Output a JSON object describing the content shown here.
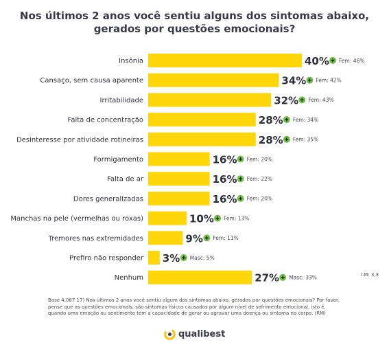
{
  "title_line1": "Nos últimos 2 anos você sentiu alguns dos sintomas abaixo,",
  "title_line2": "gerados por questões emocionais?",
  "chart_data": {
    "type": "bar",
    "orientation": "horizontal",
    "categories": [
      "Insônia",
      "Cansaço, sem causa aparente",
      "Irritabilidade",
      "Falta de concentração",
      "Desinteresse por atividade rotineiras",
      "Formigamento",
      "Falta de ar",
      "Dores generalizadas",
      "Manchas na pele (vermelhas ou roxas)",
      "Tremores nas extremidades",
      "Prefiro não responder",
      "Nenhum"
    ],
    "values": [
      40,
      34,
      32,
      28,
      28,
      16,
      16,
      16,
      10,
      9,
      3,
      27
    ],
    "value_labels": [
      "40%",
      "34%",
      "32%",
      "28%",
      "28%",
      "16%",
      "16%",
      "16%",
      "10%",
      "9%",
      "3%",
      "27%"
    ],
    "annotations": [
      "Fem: 46%",
      "Fem: 42%",
      "Fem: 43%",
      "Fem: 34%",
      "Fem: 35%",
      "Fem: 20%",
      "Fem: 22%",
      "Fem: 20%",
      "Fem: 13%",
      "Fem: 11%",
      "Masc: 5%",
      "Masc: 33%"
    ],
    "bar_color": "#FFD60A",
    "annotation_icon_color": "#6FBF44"
  },
  "im_note": "I.M: 3,3",
  "footnote": "Base 4.087 17) Nos últimos 2 anos você sentiu algum dos sintomas abaixo, gerados por questões emocionais? Por favor, pense que as questões emocionais, são sintomas físicos causados por algum nível de sofrimento emocional, isto é, quando uma emoção ou sentimento tem a capacidade de gerar ou agravar uma doença ou sintoma no corpo. (RM)",
  "brand": "qualibest"
}
